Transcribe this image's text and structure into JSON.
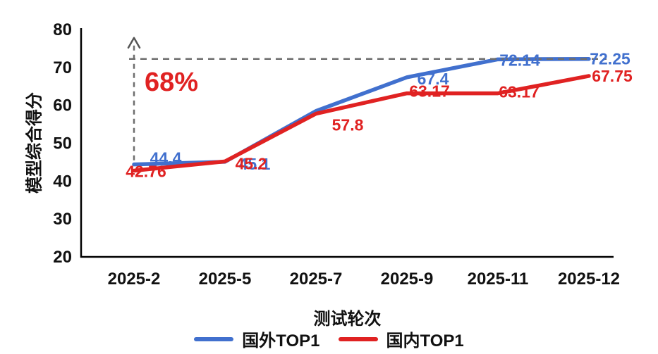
{
  "chart_data": {
    "type": "line",
    "title": "",
    "xlabel": "测试轮次",
    "ylabel": "模型综合得分",
    "categories": [
      "2025-2",
      "2025-5",
      "2025-7",
      "2025-9",
      "2025-11",
      "2025-12"
    ],
    "ylim": [
      20,
      80
    ],
    "yticks": [
      20,
      30,
      40,
      50,
      60,
      70,
      80
    ],
    "grid": false,
    "legend_position": "bottom",
    "axis_color": "#000000",
    "text_color": "#111111",
    "series": [
      {
        "name": "国外TOP1",
        "color": "#4170CE",
        "values": [
          44.4,
          45.1,
          58.5,
          67.4,
          72.14,
          72.25
        ],
        "labels": [
          "44.4",
          "45.1",
          null,
          "67.4",
          "72.14",
          "72.25"
        ],
        "label_offsets": [
          [
            45,
            -9
          ],
          [
            42,
            3
          ],
          null,
          [
            37,
            2
          ],
          [
            31,
            1
          ],
          [
            30,
            0
          ]
        ],
        "labels_behind_lines": [
          0,
          1
        ]
      },
      {
        "name": "国内TOP1",
        "color": "#E02222",
        "values": [
          42.76,
          45.2,
          57.8,
          63.17,
          63.17,
          67.75
        ],
        "labels": [
          "42.76",
          "45.2",
          "57.8",
          "63.17",
          "63.17",
          "67.75"
        ],
        "label_offsets": [
          [
            17,
            1
          ],
          [
            37,
            3
          ],
          [
            45,
            16
          ],
          [
            32,
            -3
          ],
          [
            30,
            -2
          ],
          [
            33,
            0
          ]
        ],
        "labels_behind_lines": []
      }
    ],
    "annotations": {
      "growth_label": "68%",
      "growth_label_color": "#E02222",
      "target_line_value": 72.25,
      "arrow_x_category": "2025-2",
      "arrow_from_value": 45.5,
      "arrow_to_value": 78,
      "dash_color": "#6E6E6E"
    }
  }
}
